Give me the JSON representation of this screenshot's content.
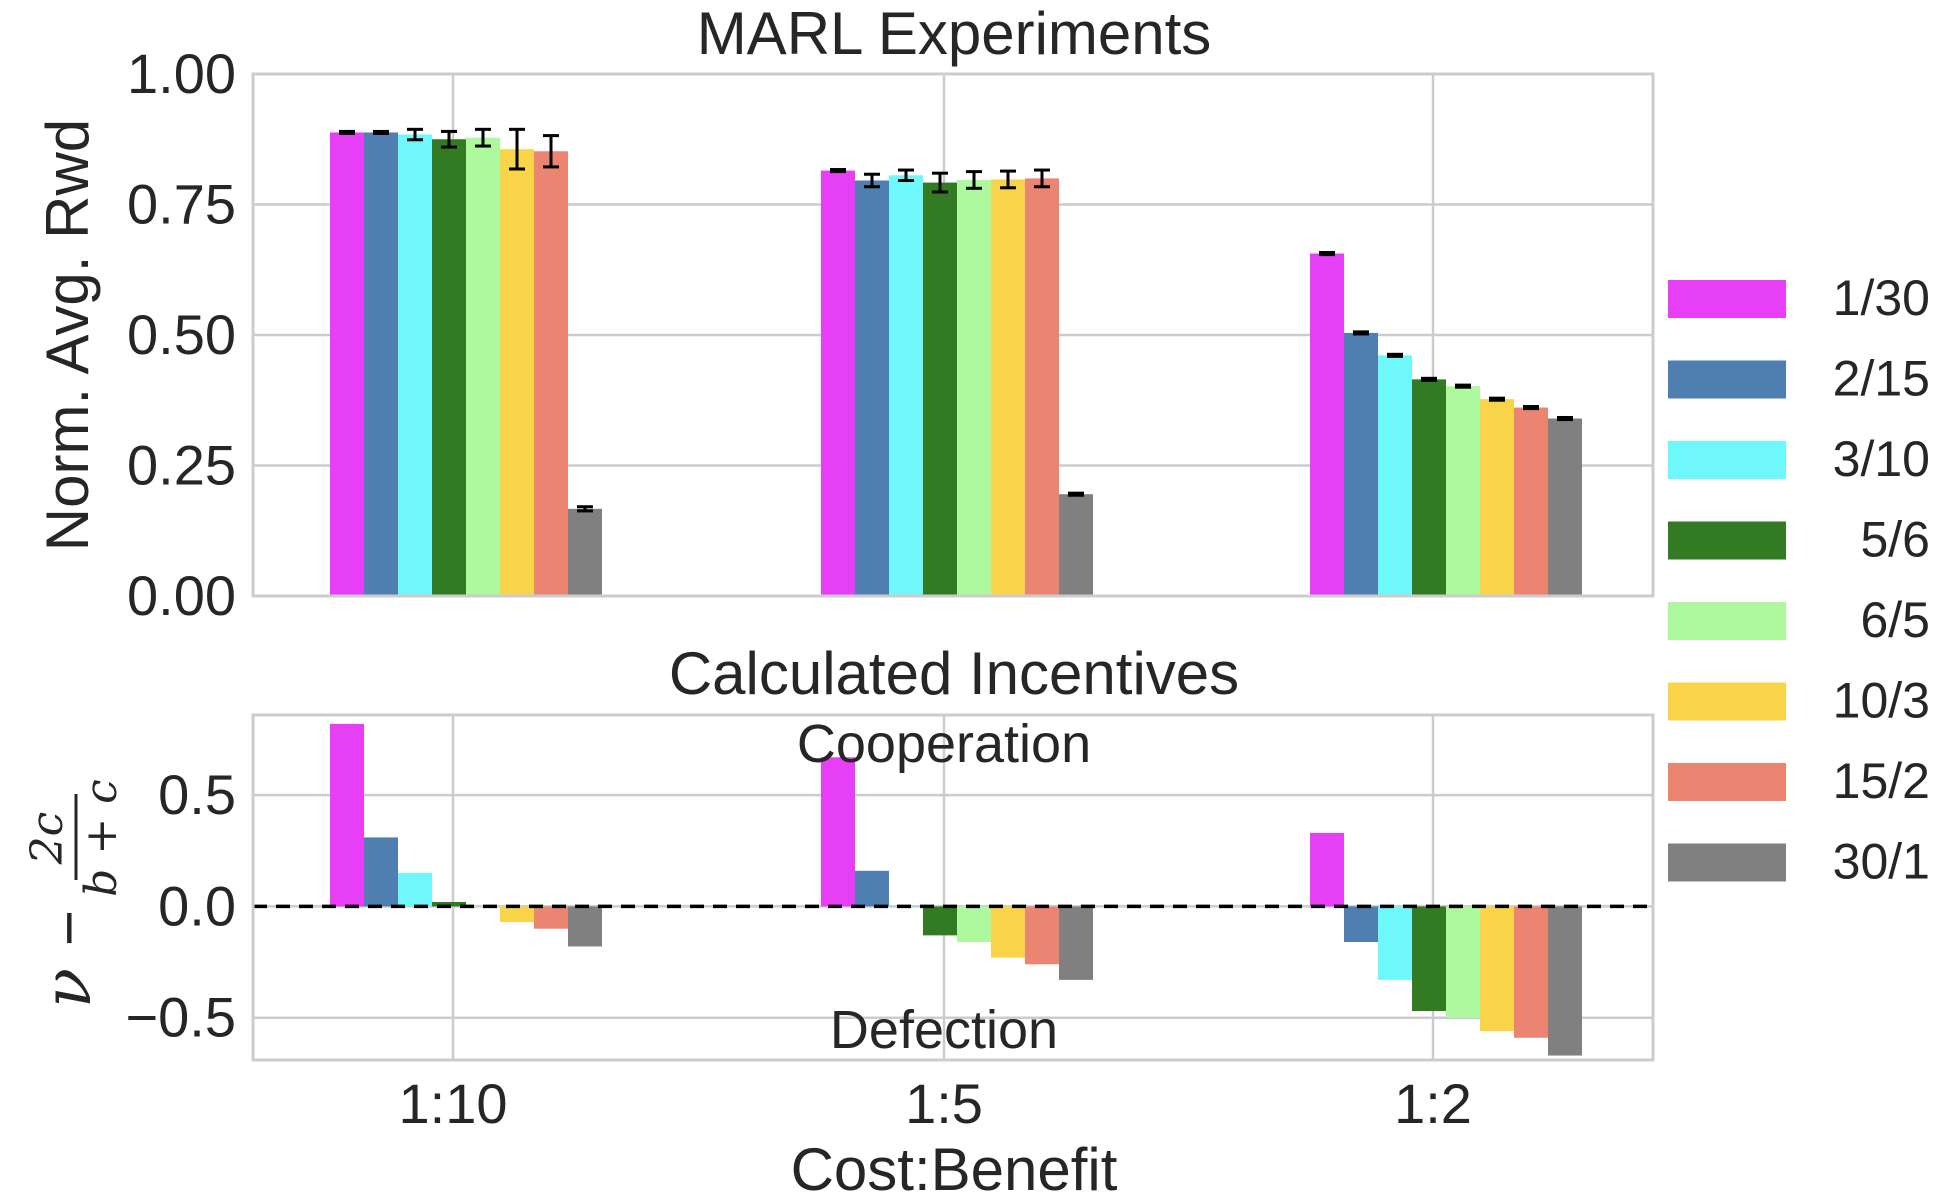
{
  "chart_data": [
    {
      "type": "bar",
      "title": "MARL Experiments",
      "ylabel": "Norm. Avg. Rwd",
      "xlabel": "",
      "ylim": [
        0,
        1.0
      ],
      "yticks": [
        "0.00",
        "0.25",
        "0.50",
        "0.75",
        "1.00"
      ],
      "ytick_values": [
        0,
        0.25,
        0.5,
        0.75,
        1.0
      ],
      "categories": [
        "1:10",
        "1:5",
        "1:2"
      ],
      "series": [
        {
          "name": "1/30",
          "color": "#e73ff5",
          "values": [
            0.888,
            0.815,
            0.656
          ],
          "err": [
            0.002,
            0.002,
            0.002
          ]
        },
        {
          "name": "2/15",
          "color": "#4f7fb0",
          "values": [
            0.888,
            0.796,
            0.504
          ],
          "err": [
            0.002,
            0.012,
            0.002
          ]
        },
        {
          "name": "3/10",
          "color": "#6ff8fa",
          "values": [
            0.884,
            0.806,
            0.461
          ],
          "err": [
            0.01,
            0.01,
            0.002
          ]
        },
        {
          "name": "5/6",
          "color": "#327b22",
          "values": [
            0.875,
            0.792,
            0.415
          ],
          "err": [
            0.015,
            0.018,
            0.002
          ]
        },
        {
          "name": "6/5",
          "color": "#aef89e",
          "values": [
            0.878,
            0.797,
            0.402
          ],
          "err": [
            0.016,
            0.016,
            0.002
          ]
        },
        {
          "name": "10/3",
          "color": "#f9d449",
          "values": [
            0.856,
            0.798,
            0.377
          ],
          "err": [
            0.038,
            0.016,
            0.002
          ]
        },
        {
          "name": "15/2",
          "color": "#ec8472",
          "values": [
            0.852,
            0.8,
            0.361
          ],
          "err": [
            0.03,
            0.016,
            0.002
          ]
        },
        {
          "name": "30/1",
          "color": "#808080",
          "values": [
            0.167,
            0.195,
            0.34
          ],
          "err": [
            0.004,
            0.002,
            0.002
          ]
        }
      ]
    },
    {
      "type": "bar",
      "title": "Calculated Incentives",
      "ylabel_nu": "ν",
      "ylabel_minus": "−",
      "ylabel_frac_num": "2c",
      "ylabel_frac_den": "b + c",
      "xlabel": "Cost:Benefit",
      "ylim": [
        -0.69,
        0.86
      ],
      "yticks": [
        "−0.5",
        "0.0",
        "0.5"
      ],
      "ytick_values": [
        -0.5,
        0.0,
        0.5
      ],
      "annotations": {
        "top": "Cooperation",
        "bottom": "Defection"
      },
      "categories": [
        "1:10",
        "1:5",
        "1:2"
      ],
      "series": [
        {
          "name": "1/30",
          "values": [
            0.82,
            0.67,
            0.33
          ]
        },
        {
          "name": "2/15",
          "values": [
            0.31,
            0.16,
            -0.16
          ]
        },
        {
          "name": "3/10",
          "values": [
            0.15,
            0.0,
            -0.33
          ]
        },
        {
          "name": "5/6",
          "values": [
            0.02,
            -0.13,
            -0.47
          ]
        },
        {
          "name": "6/5",
          "values": [
            0.0,
            -0.16,
            -0.5
          ]
        },
        {
          "name": "10/3",
          "values": [
            -0.07,
            -0.23,
            -0.56
          ]
        },
        {
          "name": "15/2",
          "values": [
            -0.1,
            -0.26,
            -0.59
          ]
        },
        {
          "name": "30/1",
          "values": [
            -0.18,
            -0.33,
            -0.67
          ]
        }
      ]
    }
  ],
  "legend": {
    "placement": "right",
    "entries": [
      "1/30",
      "2/15",
      "3/10",
      "5/6",
      "6/5",
      "10/3",
      "15/2",
      "30/1"
    ]
  }
}
